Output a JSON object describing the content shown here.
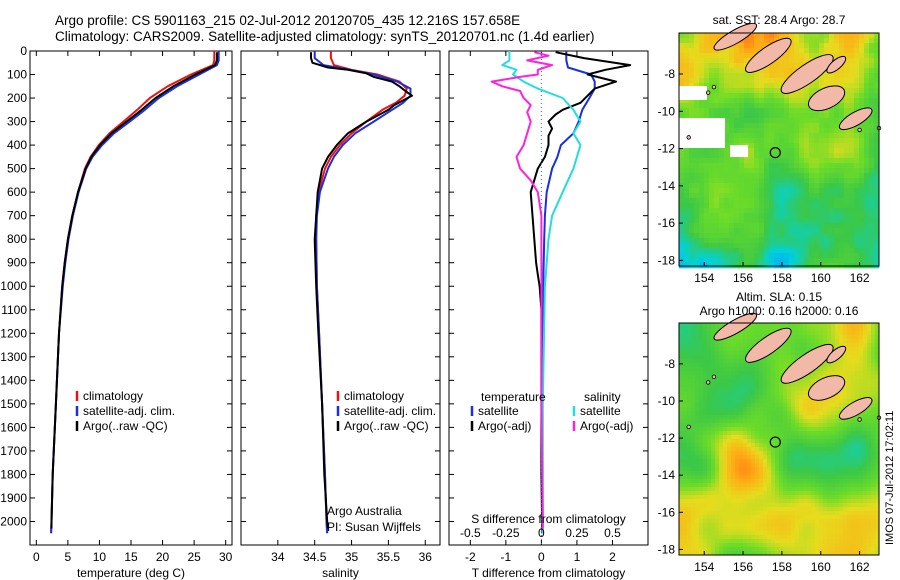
{
  "header": {
    "line1": "Argo profile: CS 5901163_215 02-Jul-2012 20120705_435 12.216S 157.658E",
    "line2": "Climatology: CARS2009. Satellite-adjusted climatology: synTS_20120701.nc (1.4d earlier)"
  },
  "stamp": "IMOS 07-Jul-2012 17:02:11",
  "colors": {
    "climatology": "#ee1111",
    "satellite": "#1a2fdd",
    "argo": "#000000",
    "sal_satellite": "#22dddd",
    "sal_argo": "#ff22dd",
    "land": "#f2b8a8"
  },
  "depth_axis": {
    "ylim": [
      0,
      2100
    ],
    "ticks": [
      0,
      100,
      200,
      300,
      400,
      500,
      600,
      700,
      800,
      900,
      1000,
      1100,
      1200,
      1300,
      1400,
      1500,
      1600,
      1700,
      1800,
      1900,
      2000
    ]
  },
  "chart_data": [
    {
      "type": "line",
      "xlabel": "temperature (deg C)",
      "xlim": [
        -1,
        31
      ],
      "xticks": [
        0,
        5,
        10,
        15,
        20,
        25,
        30
      ],
      "ylim": [
        0,
        2100
      ],
      "legend": [
        "climatology",
        "satellite-adj. clim.",
        "Argo(..raw -QC)"
      ],
      "series": [
        {
          "name": "climatology",
          "depth": [
            0,
            40,
            60,
            100,
            150,
            200,
            250,
            300,
            350,
            400,
            450,
            500,
            600,
            700,
            800,
            900,
            1000,
            1200,
            1500,
            1800,
            2000,
            2050
          ],
          "values": [
            28.2,
            28.2,
            28,
            24.5,
            20.8,
            18,
            16,
            13.8,
            11.6,
            9.9,
            8.6,
            7.7,
            6.6,
            5.7,
            5.0,
            4.5,
            4.1,
            3.6,
            3.1,
            2.6,
            2.4,
            2.35
          ]
        },
        {
          "name": "satellite-adj. clim.",
          "depth": [
            0,
            40,
            60,
            100,
            150,
            200,
            250,
            300,
            350,
            400,
            450,
            500,
            600,
            700,
            800,
            900,
            1000,
            1200,
            1500,
            1800,
            2000,
            2050
          ],
          "values": [
            28.9,
            28.9,
            28.6,
            25.8,
            22.3,
            19.4,
            17.2,
            14.8,
            12.3,
            10.4,
            8.9,
            7.9,
            6.7,
            5.8,
            5.1,
            4.6,
            4.2,
            3.6,
            3.1,
            2.6,
            2.4,
            2.35
          ]
        },
        {
          "name": "Argo(..raw -QC)",
          "depth": [
            5,
            40,
            60,
            100,
            150,
            200,
            250,
            300,
            350,
            400,
            450,
            500,
            600,
            700,
            800,
            900,
            1000,
            1200,
            1500,
            1800,
            2000,
            2030
          ],
          "values": [
            28.6,
            28.6,
            28.3,
            25.2,
            21.7,
            18.9,
            16.7,
            14.3,
            11.9,
            10.1,
            8.7,
            7.8,
            6.6,
            5.7,
            5.0,
            4.5,
            4.1,
            3.6,
            3.1,
            2.6,
            2.4,
            2.4
          ]
        }
      ]
    },
    {
      "type": "line",
      "xlabel": "salinity",
      "xlim": [
        33.5,
        36.2
      ],
      "xticks": [
        34,
        34.5,
        35,
        35.5,
        36
      ],
      "ylim": [
        0,
        2100
      ],
      "legend": [
        "climatology",
        "satellite-adj. clim.",
        "Argo(..raw -QC)"
      ],
      "annotation_lines": [
        "Argo Australia",
        "PI: Susan Wijffels"
      ],
      "series": [
        {
          "name": "climatology",
          "depth": [
            0,
            30,
            60,
            80,
            100,
            130,
            160,
            190,
            220,
            250,
            300,
            350,
            400,
            450,
            500,
            600,
            700,
            800,
            1000,
            1200,
            1500,
            1800,
            2000,
            2050
          ],
          "values": [
            34.72,
            34.72,
            34.76,
            35.0,
            35.35,
            35.65,
            35.75,
            35.72,
            35.6,
            35.42,
            35.2,
            35.0,
            34.84,
            34.72,
            34.64,
            34.55,
            34.52,
            34.52,
            34.53,
            34.56,
            34.6,
            34.64,
            34.66,
            34.67
          ]
        },
        {
          "name": "satellite-adj. clim.",
          "depth": [
            0,
            30,
            60,
            80,
            100,
            130,
            160,
            190,
            220,
            250,
            300,
            350,
            400,
            450,
            500,
            600,
            700,
            800,
            1000,
            1200,
            1500,
            1800,
            2000,
            2050
          ],
          "values": [
            34.5,
            34.5,
            34.62,
            34.98,
            35.3,
            35.62,
            35.8,
            35.8,
            35.7,
            35.55,
            35.3,
            35.05,
            34.88,
            34.76,
            34.68,
            34.57,
            34.53,
            34.52,
            34.53,
            34.56,
            34.6,
            34.64,
            34.66,
            34.67
          ]
        },
        {
          "name": "Argo(..raw -QC)",
          "depth": [
            5,
            30,
            50,
            70,
            80,
            95,
            110,
            130,
            150,
            170,
            190,
            210,
            230,
            250,
            300,
            350,
            400,
            450,
            500,
            600,
            700,
            800,
            1000,
            1200,
            1500,
            1800,
            2000,
            2030
          ],
          "values": [
            34.45,
            34.45,
            34.47,
            34.68,
            34.95,
            35.2,
            35.3,
            35.55,
            35.65,
            35.73,
            35.82,
            35.7,
            35.58,
            35.5,
            35.2,
            34.95,
            34.8,
            34.68,
            34.6,
            34.54,
            34.52,
            34.5,
            34.52,
            34.55,
            34.6,
            34.63,
            34.67,
            34.68
          ]
        }
      ]
    },
    {
      "type": "line",
      "xlabel": "T difference from climatology",
      "xlabel_top": "S difference from climatology",
      "xlim": [
        -2.6,
        3.0
      ],
      "xticks": [
        -2,
        -1,
        0,
        1,
        2
      ],
      "top_ticks": [
        -0.5,
        -0.25,
        0,
        0.25,
        0.5
      ],
      "top_tick_labels": [
        "-0.5",
        "-0.25",
        "0",
        "0.25",
        "0.5"
      ],
      "ylim": [
        0,
        2100
      ],
      "legend_temperature": [
        "temperature",
        "satellite",
        "Argo(-adj)"
      ],
      "legend_salinity": [
        "salinity",
        "satellite",
        "Argo(-adj)"
      ],
      "series": [
        {
          "name": "T satellite",
          "depth": [
            0,
            40,
            70,
            100,
            130,
            160,
            200,
            250,
            300,
            350,
            400,
            450,
            500,
            600,
            700,
            800,
            1000,
            1500,
            2000,
            2050
          ],
          "values": [
            0.7,
            0.7,
            0.75,
            1.4,
            1.5,
            1.5,
            1.35,
            1.15,
            1.05,
            0.9,
            0.55,
            0.45,
            0.3,
            0.15,
            0.1,
            0.08,
            0.05,
            0.03,
            0.02,
            0.02
          ]
        },
        {
          "name": "T Argo",
          "depth": [
            5,
            30,
            60,
            80,
            100,
            130,
            160,
            190,
            220,
            250,
            270,
            300,
            330,
            360,
            400,
            450,
            500,
            600,
            700,
            800,
            900,
            950,
            1000,
            1100,
            1200,
            1500,
            1800,
            2000,
            2030
          ],
          "values": [
            0.4,
            1.2,
            2.5,
            1.8,
            1.3,
            2.1,
            1.5,
            1.3,
            1.1,
            0.6,
            0.4,
            0.2,
            0.3,
            0.2,
            0.2,
            0.1,
            -0.1,
            -0.3,
            -0.25,
            -0.2,
            -0.15,
            -0.1,
            -0.05,
            0.0,
            0.0,
            0.0,
            0.0,
            0.02,
            0.02
          ]
        }
      ]
    }
  ],
  "maps": [
    {
      "title_lines": [
        "sat. SST: 28.4 Argo: 28.7"
      ],
      "xticks": [
        154,
        156,
        158,
        160,
        162
      ],
      "yticks": [
        -8,
        -10,
        -12,
        -14,
        -16,
        -18
      ],
      "xlim": [
        152.7,
        163.0
      ],
      "ylim": [
        -18.3,
        -5.8
      ],
      "marker": {
        "lon": 157.658,
        "lat": -12.216
      }
    },
    {
      "title_lines": [
        "Altim. SLA: 0.15",
        "Argo h1000: 0.16 h2000: 0.16"
      ],
      "xticks": [
        154,
        156,
        158,
        160,
        162
      ],
      "yticks": [
        -8,
        -10,
        -12,
        -14,
        -16,
        -18
      ],
      "xlim": [
        152.7,
        163.0
      ],
      "ylim": [
        -18.3,
        -5.8
      ],
      "marker": {
        "lon": 157.658,
        "lat": -12.216
      }
    }
  ]
}
